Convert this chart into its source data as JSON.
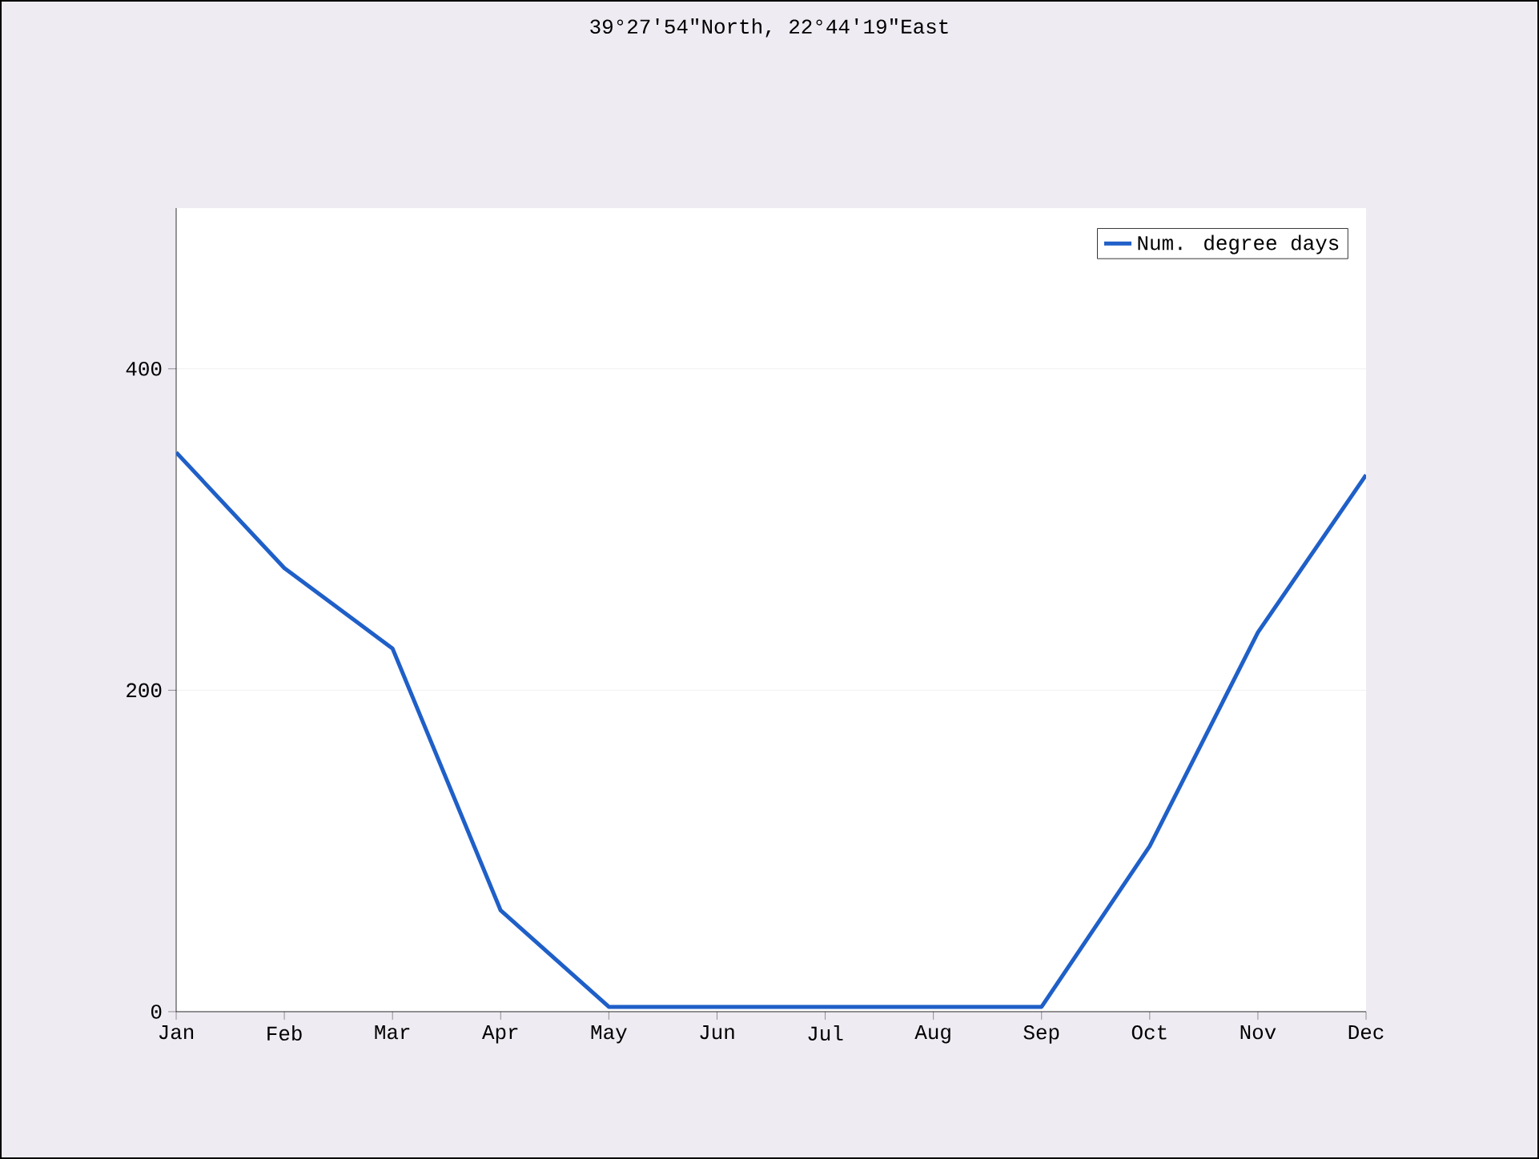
{
  "chart_data": {
    "type": "line",
    "title": "39°27′54\"North, 22°44′19\"East",
    "categories": [
      "Jan",
      "Feb",
      "Mar",
      "Apr",
      "May",
      "Jun",
      "Jul",
      "Aug",
      "Sep",
      "Oct",
      "Nov",
      "Dec"
    ],
    "series": [
      {
        "name": "Num. degree days",
        "color": "#1f5fc8",
        "values": [
          348,
          276,
          226,
          63,
          3,
          3,
          3,
          3,
          3,
          103,
          236,
          334
        ]
      }
    ],
    "ylim": [
      0,
      500
    ],
    "yticks": [
      0,
      200,
      400
    ],
    "grid": "y",
    "legend": "top right",
    "marker": "none",
    "line_style": "solid"
  }
}
